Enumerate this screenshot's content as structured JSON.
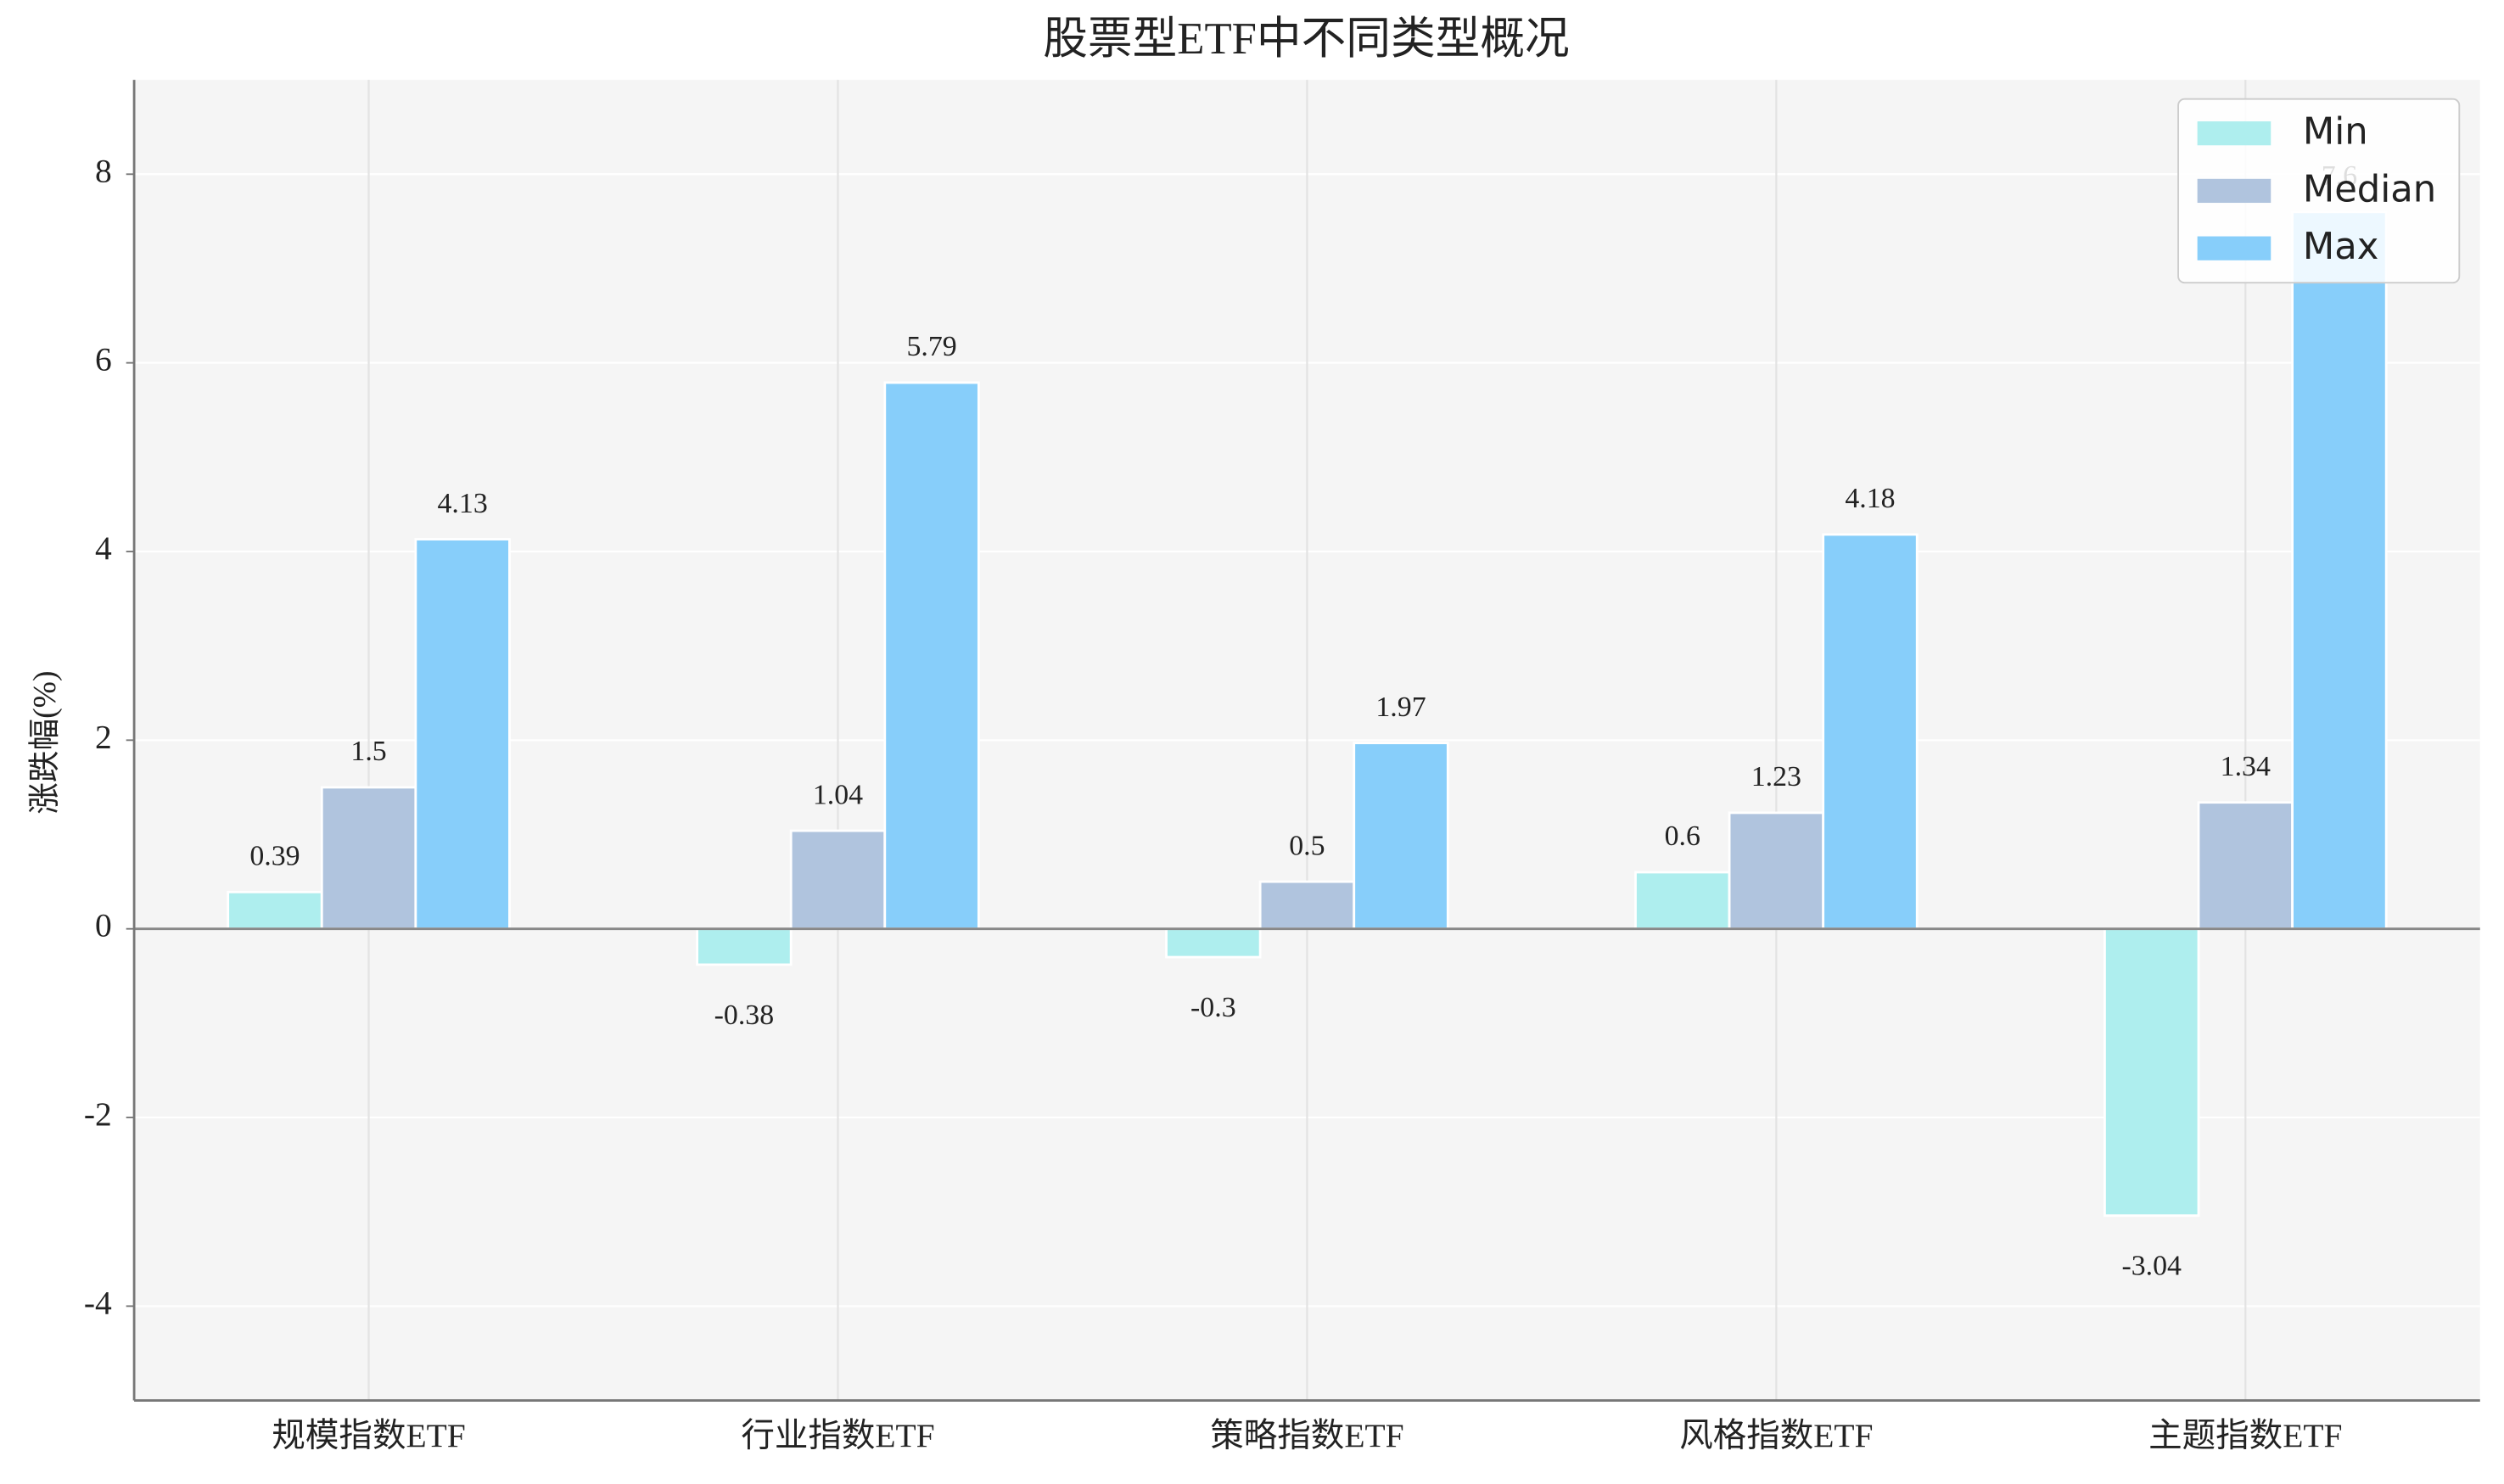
{
  "chart_data": {
    "type": "bar",
    "title": "股票型ETF中不同类型概况",
    "y_label": "涨跌幅(%)",
    "categories": [
      "规模指数ETF",
      "行业指数ETF",
      "策略指数ETF",
      "风格指数ETF",
      "主题指数ETF"
    ],
    "series": [
      {
        "name": "Min",
        "color": "#aeeeee",
        "values": [
          0.39,
          -0.38,
          -0.3,
          0.6,
          -3.04
        ]
      },
      {
        "name": "Median",
        "color": "#b0c4de",
        "values": [
          1.5,
          1.04,
          0.5,
          1.23,
          1.34
        ]
      },
      {
        "name": "Max",
        "color": "#87cefa",
        "values": [
          4.13,
          5.79,
          1.97,
          4.18,
          7.6
        ]
      }
    ],
    "ylim": [
      -5,
      9
    ],
    "yticks": [
      -4,
      -2,
      0,
      2,
      4,
      6,
      8
    ],
    "grid": true,
    "legend": "upper right"
  }
}
